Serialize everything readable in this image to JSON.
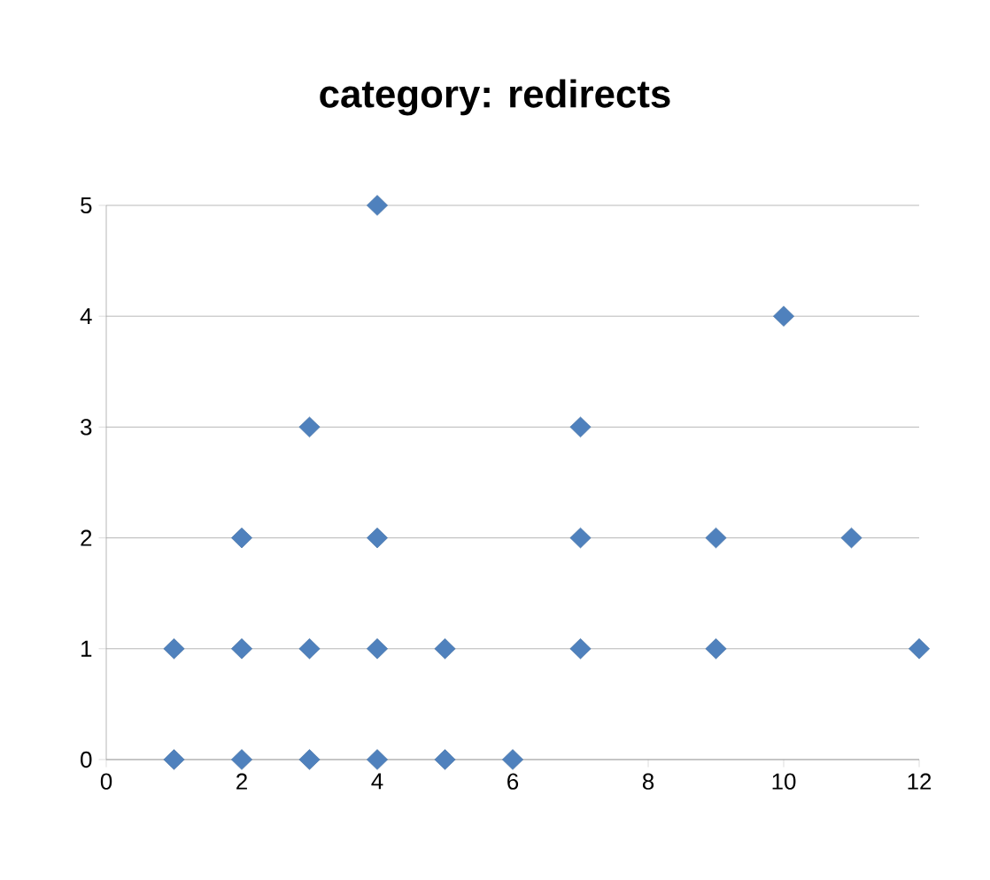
{
  "chart_data": {
    "type": "scatter",
    "title": "category: redirects",
    "x": [
      1,
      2,
      3,
      4,
      5,
      6,
      1,
      2,
      3,
      4,
      5,
      7,
      9,
      12,
      2,
      4,
      7,
      9,
      11,
      3,
      7,
      10,
      4
    ],
    "values": [
      0,
      0,
      0,
      0,
      0,
      0,
      1,
      1,
      1,
      1,
      1,
      1,
      1,
      1,
      2,
      2,
      2,
      2,
      2,
      3,
      3,
      4,
      5
    ],
    "color": "#4f81bd",
    "marker": "diamond",
    "xlim": [
      0,
      12
    ],
    "xticks": [
      0,
      2,
      4,
      6,
      8,
      10,
      12
    ],
    "ylim": [
      0,
      5
    ],
    "yticks": [
      0,
      1,
      2,
      3,
      4,
      5
    ],
    "grid": "y"
  }
}
